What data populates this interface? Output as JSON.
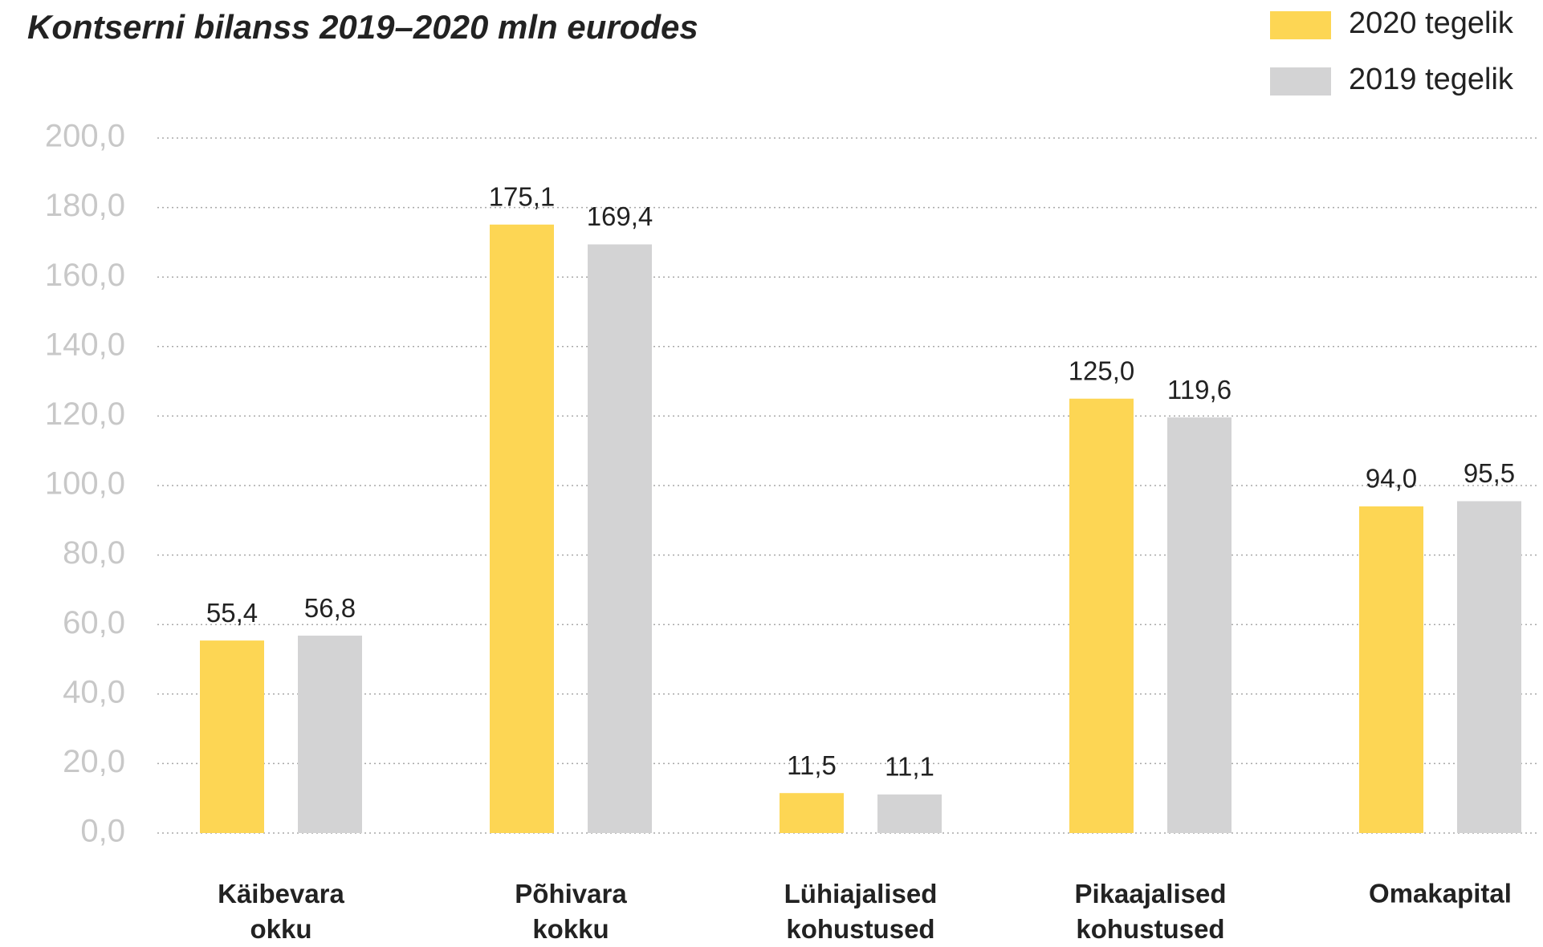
{
  "chart_data": {
    "type": "bar",
    "title": "Kontserni bilanss 2019–2020 mln eurodes",
    "categories": [
      "Käibevara okku",
      "Põhivara kokku",
      "Lühiajalised kohustused",
      "Pikaajalised kohustused",
      "Omakapital"
    ],
    "series": [
      {
        "name": "2020 tegelik",
        "color": "#fdd654",
        "values": [
          55.4,
          175.1,
          11.5,
          125.0,
          94.0
        ],
        "value_labels": [
          "55,4",
          "175,1",
          "11,5",
          "125,0",
          "94,0"
        ]
      },
      {
        "name": "2019 tegelik",
        "color": "#d3d3d4",
        "values": [
          56.8,
          169.4,
          11.1,
          119.6,
          95.5
        ],
        "value_labels": [
          "56,8",
          "169,4",
          "11,1",
          "119,6",
          "95,5"
        ]
      }
    ],
    "ylim": [
      0,
      200
    ],
    "yticks": [
      {
        "value": 0,
        "label": "0,0"
      },
      {
        "value": 20,
        "label": "20,0"
      },
      {
        "value": 40,
        "label": "40,0"
      },
      {
        "value": 60,
        "label": "60,0"
      },
      {
        "value": 80,
        "label": "80,0"
      },
      {
        "value": 100,
        "label": "100,0"
      },
      {
        "value": 120,
        "label": "120,0"
      },
      {
        "value": 140,
        "label": "140,0"
      },
      {
        "value": 160,
        "label": "160,0"
      },
      {
        "value": 180,
        "label": "180,0"
      },
      {
        "value": 200,
        "label": "200,0"
      }
    ],
    "grid": true,
    "legend": "top-right"
  }
}
